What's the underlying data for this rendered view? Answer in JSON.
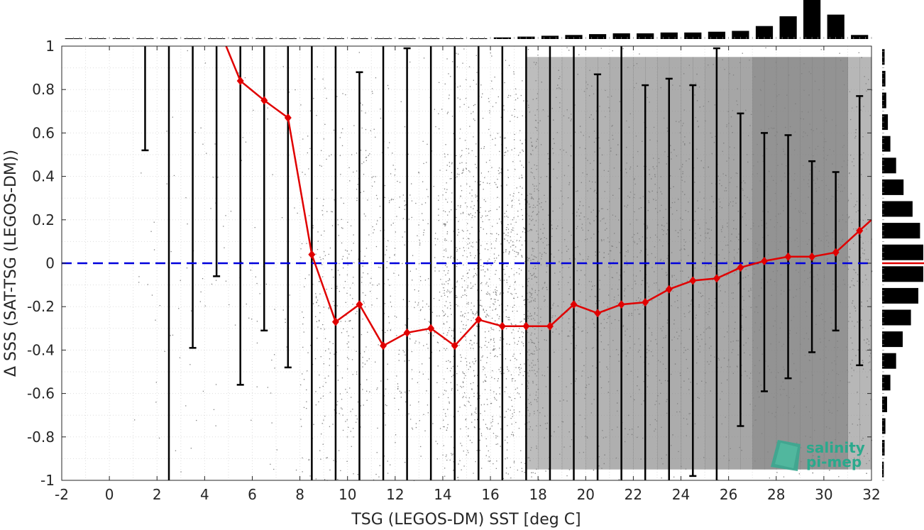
{
  "chart_data": {
    "type": "scatter",
    "xlabel": "TSG (LEGOS-DM) SST [deg C]",
    "ylabel": "Δ SSS (SAT-TSG (LEGOS-DM))",
    "xlim": [
      -2,
      32
    ],
    "ylim": [
      -1,
      1
    ],
    "x_ticks": [
      "-2",
      "0",
      "2",
      "4",
      "6",
      "8",
      "10",
      "12",
      "14",
      "16",
      "18",
      "20",
      "22",
      "24",
      "26",
      "28",
      "30",
      "32"
    ],
    "y_ticks": [
      "-1",
      "-0.8",
      "-0.6",
      "-0.4",
      "-0.2",
      "0",
      "0.2",
      "0.4",
      "0.6",
      "0.8",
      "1"
    ],
    "grid": true,
    "zero_line": {
      "y": 0,
      "color": "#0000dd",
      "style": "dashed"
    },
    "scatter_color": "#808080",
    "mean_series": {
      "color": "#e00000",
      "x": [
        5.5,
        6.5,
        7.5,
        8.5,
        9.5,
        10.5,
        11.5,
        12.5,
        13.5,
        14.5,
        15.5,
        16.5,
        17.5,
        18.5,
        19.5,
        20.5,
        21.5,
        22.5,
        23.5,
        24.5,
        25.5,
        26.5,
        27.5,
        28.5,
        29.5,
        30.5,
        31.5
      ],
      "y": [
        0.84,
        0.75,
        0.67,
        0.04,
        -0.27,
        -0.19,
        -0.38,
        -0.32,
        -0.3,
        -0.38,
        -0.26,
        -0.29,
        -0.29,
        -0.29,
        -0.19,
        -0.23,
        -0.19,
        -0.18,
        -0.12,
        -0.08,
        -0.07,
        -0.02,
        0.01,
        0.03,
        0.03,
        0.05,
        0.15
      ],
      "lead_in": [
        [
          4.9,
          1.02
        ],
        [
          5.5,
          0.84
        ]
      ],
      "lead_out": [
        [
          31.5,
          0.15
        ],
        [
          32.0,
          0.2
        ]
      ]
    },
    "error_bars": [
      {
        "x": 1.5,
        "low": 0.52,
        "high": 1.05,
        "cap_low": true,
        "cap_high": false
      },
      {
        "x": 2.5,
        "low": -1.05,
        "high": 1.05,
        "cap_low": false,
        "cap_high": false
      },
      {
        "x": 3.5,
        "low": -0.39,
        "high": 1.05,
        "cap_low": true,
        "cap_high": false
      },
      {
        "x": 4.5,
        "low": -0.06,
        "high": 1.05,
        "cap_low": true,
        "cap_high": false
      },
      {
        "x": 5.5,
        "low": -0.56,
        "high": 1.05,
        "cap_low": true,
        "cap_high": false
      },
      {
        "x": 6.5,
        "low": -0.31,
        "high": 1.05,
        "cap_low": true,
        "cap_high": false
      },
      {
        "x": 7.5,
        "low": -0.48,
        "high": 1.05,
        "cap_low": true,
        "cap_high": false
      },
      {
        "x": 8.5,
        "low": -1.05,
        "high": 1.05,
        "cap_low": false,
        "cap_high": false
      },
      {
        "x": 9.5,
        "low": -1.05,
        "high": 1.05,
        "cap_low": false,
        "cap_high": false
      },
      {
        "x": 10.5,
        "low": -1.05,
        "high": 0.88,
        "cap_low": false,
        "cap_high": true
      },
      {
        "x": 11.5,
        "low": -1.05,
        "high": 1.05,
        "cap_low": false,
        "cap_high": false
      },
      {
        "x": 12.5,
        "low": -1.05,
        "high": 0.99,
        "cap_low": false,
        "cap_high": true
      },
      {
        "x": 13.5,
        "low": -1.05,
        "high": 1.05,
        "cap_low": false,
        "cap_high": false
      },
      {
        "x": 14.5,
        "low": -1.05,
        "high": 1.05,
        "cap_low": false,
        "cap_high": false
      },
      {
        "x": 15.5,
        "low": -1.05,
        "high": 1.05,
        "cap_low": false,
        "cap_high": false
      },
      {
        "x": 16.5,
        "low": -1.05,
        "high": 1.05,
        "cap_low": false,
        "cap_high": false
      },
      {
        "x": 17.5,
        "low": -1.05,
        "high": 1.05,
        "cap_low": false,
        "cap_high": false
      },
      {
        "x": 18.5,
        "low": -1.05,
        "high": 1.05,
        "cap_low": false,
        "cap_high": false
      },
      {
        "x": 19.5,
        "low": -1.05,
        "high": 1.05,
        "cap_low": false,
        "cap_high": false
      },
      {
        "x": 20.5,
        "low": -1.05,
        "high": 0.87,
        "cap_low": false,
        "cap_high": true
      },
      {
        "x": 21.5,
        "low": -1.05,
        "high": 1.05,
        "cap_low": false,
        "cap_high": false
      },
      {
        "x": 22.5,
        "low": -1.05,
        "high": 0.82,
        "cap_low": false,
        "cap_high": true
      },
      {
        "x": 23.5,
        "low": -1.05,
        "high": 0.85,
        "cap_low": false,
        "cap_high": true
      },
      {
        "x": 24.5,
        "low": -0.98,
        "high": 0.82,
        "cap_low": true,
        "cap_high": true
      },
      {
        "x": 25.5,
        "low": -1.05,
        "high": 0.99,
        "cap_low": false,
        "cap_high": true
      },
      {
        "x": 26.5,
        "low": -0.75,
        "high": 0.69,
        "cap_low": true,
        "cap_high": true
      },
      {
        "x": 27.5,
        "low": -0.59,
        "high": 0.6,
        "cap_low": true,
        "cap_high": true
      },
      {
        "x": 28.5,
        "low": -0.53,
        "high": 0.59,
        "cap_low": true,
        "cap_high": true
      },
      {
        "x": 29.5,
        "low": -0.41,
        "high": 0.47,
        "cap_low": true,
        "cap_high": true
      },
      {
        "x": 30.5,
        "low": -0.31,
        "high": 0.42,
        "cap_low": true,
        "cap_high": true
      },
      {
        "x": 31.5,
        "low": -0.47,
        "high": 0.77,
        "cap_low": true,
        "cap_high": true
      }
    ],
    "top_histogram": {
      "bin_width": 1,
      "x": [
        -1.5,
        -0.5,
        0.5,
        1.5,
        2.5,
        3.5,
        4.5,
        5.5,
        6.5,
        7.5,
        8.5,
        9.5,
        10.5,
        11.5,
        12.5,
        13.5,
        14.5,
        15.5,
        16.5,
        17.5,
        18.5,
        19.5,
        20.5,
        21.5,
        22.5,
        23.5,
        24.5,
        25.5,
        26.5,
        27.5,
        28.5,
        29.5,
        30.5,
        31.5
      ],
      "counts": [
        0,
        0,
        0,
        0,
        0,
        0,
        0,
        0,
        0,
        0,
        0,
        0,
        0,
        0,
        0,
        1,
        1,
        1,
        2,
        3,
        4,
        5,
        6,
        7,
        7,
        8,
        8,
        9,
        10,
        16,
        28,
        48,
        30,
        5
      ],
      "max": 48
    },
    "right_histogram": {
      "bin_width": 0.1,
      "y": [
        -0.95,
        -0.85,
        -0.75,
        -0.65,
        -0.55,
        -0.45,
        -0.35,
        -0.25,
        -0.15,
        -0.05,
        0.05,
        0.15,
        0.25,
        0.35,
        0.45,
        0.55,
        0.65,
        0.75,
        0.85,
        0.95
      ],
      "counts": [
        2,
        3,
        4,
        6,
        10,
        17,
        25,
        35,
        44,
        50,
        50,
        46,
        37,
        26,
        17,
        10,
        7,
        5,
        4,
        3
      ],
      "max": 50,
      "median_line_y": 0,
      "median_line_color": "#e00000"
    },
    "watermark": "salinity pi-mep"
  }
}
